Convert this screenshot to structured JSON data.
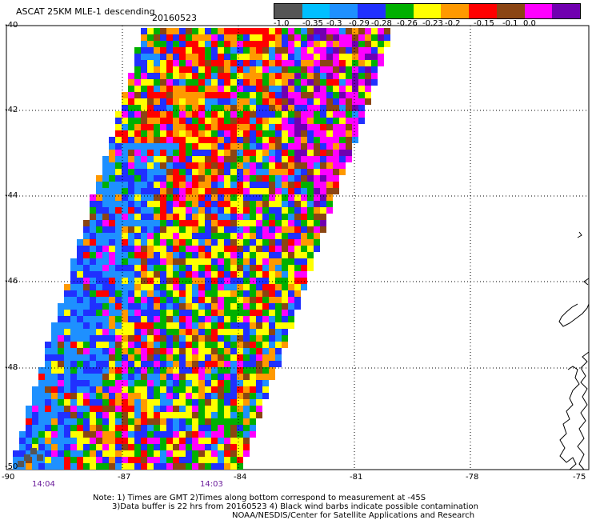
{
  "header": {
    "title": "ASCAT 25KM MLE-1 descending",
    "date": "20160523"
  },
  "colorbar": {
    "colors": [
      "#555555",
      "#00bfff",
      "#1e90ff",
      "#2030ff",
      "#00b000",
      "#ffff00",
      "#ff9900",
      "#ff0000",
      "#8b4513",
      "#ff00ff",
      "#7000b0"
    ],
    "labels": [
      "-1.0",
      "-0.35",
      "-0.3",
      "-0.29",
      "-0.28",
      "-0.26",
      "-0.23",
      "-0.2",
      "-0.15",
      "-0.1",
      "0.0"
    ]
  },
  "axes": {
    "lat_labels": [
      "-40",
      "-42",
      "-44",
      "-46",
      "-48",
      "-50"
    ],
    "lon_labels": [
      "-90",
      "-87",
      "-84",
      "-81",
      "-78",
      "-75"
    ],
    "time_labels": [
      "14:04",
      "14:03"
    ]
  },
  "notes": {
    "line1": "Note: 1) Times are GMT 2)Times along bottom correspond to measurement at -45S",
    "line2": "3)Data buffer is 22 hrs from 20160523 4) Black wind barbs indicate possible contamination",
    "line3": "NOAA/NESDIS/Center for Satellite Applications and Research"
  }
}
